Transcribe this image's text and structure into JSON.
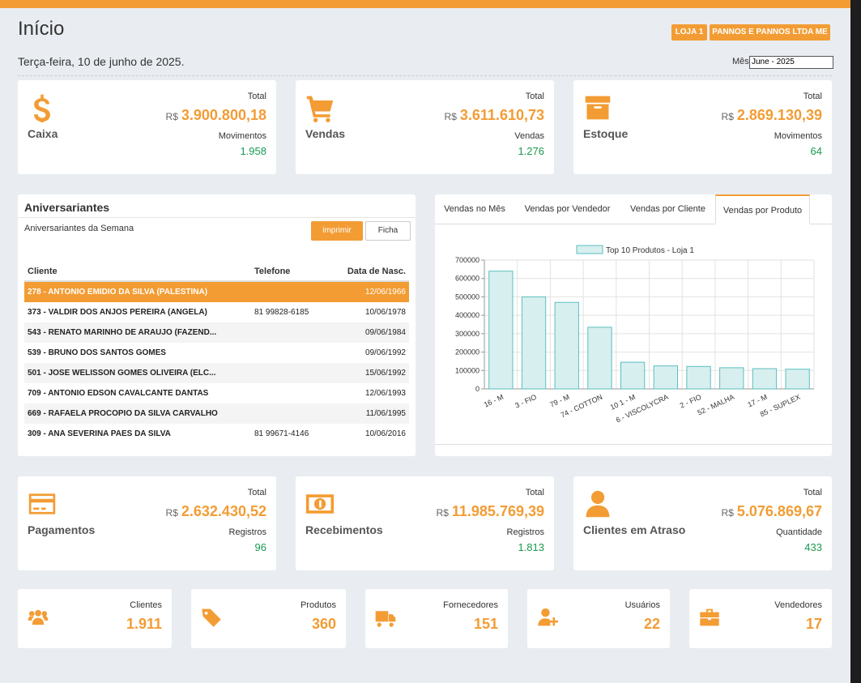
{
  "header": {
    "title": "Início",
    "badges": [
      "LOJA 1",
      "PANNOS E PANNOS LTDA ME"
    ],
    "date": "Terça-feira, 10 de junho de 2025.",
    "month_label": "Mês",
    "month_value": "June - 2025"
  },
  "summary_cards": [
    {
      "label": "Caixa",
      "total_label": "Total",
      "currency": "R$",
      "total": "3.900.800,18",
      "sub_label": "Movimentos",
      "sub_value": "1.958"
    },
    {
      "label": "Vendas",
      "total_label": "Total",
      "currency": "R$",
      "total": "3.611.610,73",
      "sub_label": "Vendas",
      "sub_value": "1.276"
    },
    {
      "label": "Estoque",
      "total_label": "Total",
      "currency": "R$",
      "total": "2.869.130,39",
      "sub_label": "Movimentos",
      "sub_value": "64"
    }
  ],
  "birthdays": {
    "title": "Aniversariantes",
    "subtitle": "Aniversariantes da Semana",
    "buttons": [
      "imprimir",
      "Ficha"
    ],
    "columns": [
      "Cliente",
      "Telefone",
      "Data de Nasc."
    ],
    "rows": [
      [
        "278 - ANTONIO EMIDIO DA SILVA (PALESTINA)",
        "",
        "12/06/1966"
      ],
      [
        "373 - VALDIR DOS ANJOS PEREIRA (ANGELA)",
        "81 99828-6185",
        "10/06/1978"
      ],
      [
        "543 - RENATO MARINHO DE ARAUJO (FAZEND...",
        "",
        "09/06/1984"
      ],
      [
        "539 - BRUNO DOS SANTOS GOMES",
        "",
        "09/06/1992"
      ],
      [
        "501 - JOSE WELISSON GOMES OLIVEIRA (ELC...",
        "",
        "15/06/1992"
      ],
      [
        "709 - ANTONIO EDSON CAVALCANTE DANTAS",
        "",
        "12/06/1993"
      ],
      [
        "669 - RAFAELA PROCOPIO DA SILVA CARVALHO",
        "",
        "11/06/1995"
      ],
      [
        "309 - ANA SEVERINA PAES DA SILVA",
        "81 99671-4146",
        "10/06/2016"
      ]
    ]
  },
  "tabs": {
    "items": [
      "Vendas no Mês",
      "Vendas por Vendedor",
      "Vendas por Cliente",
      "Vendas por Produto"
    ],
    "active": 3
  },
  "chart_data": {
    "type": "bar",
    "categories": [
      "16 - M",
      "3 - FIO",
      "79 - M",
      "74 - COTTON",
      "10 1 - M",
      "6 - VISCOLYCRA",
      "2 - FIO",
      "52 - MALHA",
      "17 - M",
      "85 - SUPLEX"
    ],
    "series": [
      {
        "name": "Top 10 Produtos - Loja 1",
        "color": "#5bbfbf",
        "values": [
          640000,
          500000,
          470000,
          335000,
          145000,
          125000,
          122000,
          115000,
          110000,
          107000
        ]
      }
    ],
    "ylim": [
      0,
      700000
    ],
    "yticks": [
      0,
      100000,
      200000,
      300000,
      400000,
      500000,
      600000,
      700000
    ],
    "grid": true
  },
  "finance_cards": [
    {
      "label": "Pagamentos",
      "total_label": "Total",
      "currency": "R$",
      "total": "2.632.430,52",
      "sub_label": "Registros",
      "sub_value": "96"
    },
    {
      "label": "Recebimentos",
      "total_label": "Total",
      "currency": "R$",
      "total": "11.985.769,39",
      "sub_label": "Registros",
      "sub_value": "1.813"
    },
    {
      "label": "Clientes em Atraso",
      "total_label": "Total",
      "currency": "R$",
      "total": "5.076.869,67",
      "sub_label": "Quantidade",
      "sub_value": "433"
    }
  ],
  "count_cards": [
    {
      "label": "Clientes",
      "value": "1.911"
    },
    {
      "label": "Produtos",
      "value": "360"
    },
    {
      "label": "Fornecedores",
      "value": "151"
    },
    {
      "label": "Usuários",
      "value": "22"
    },
    {
      "label": "Vendedores",
      "value": "17"
    }
  ]
}
